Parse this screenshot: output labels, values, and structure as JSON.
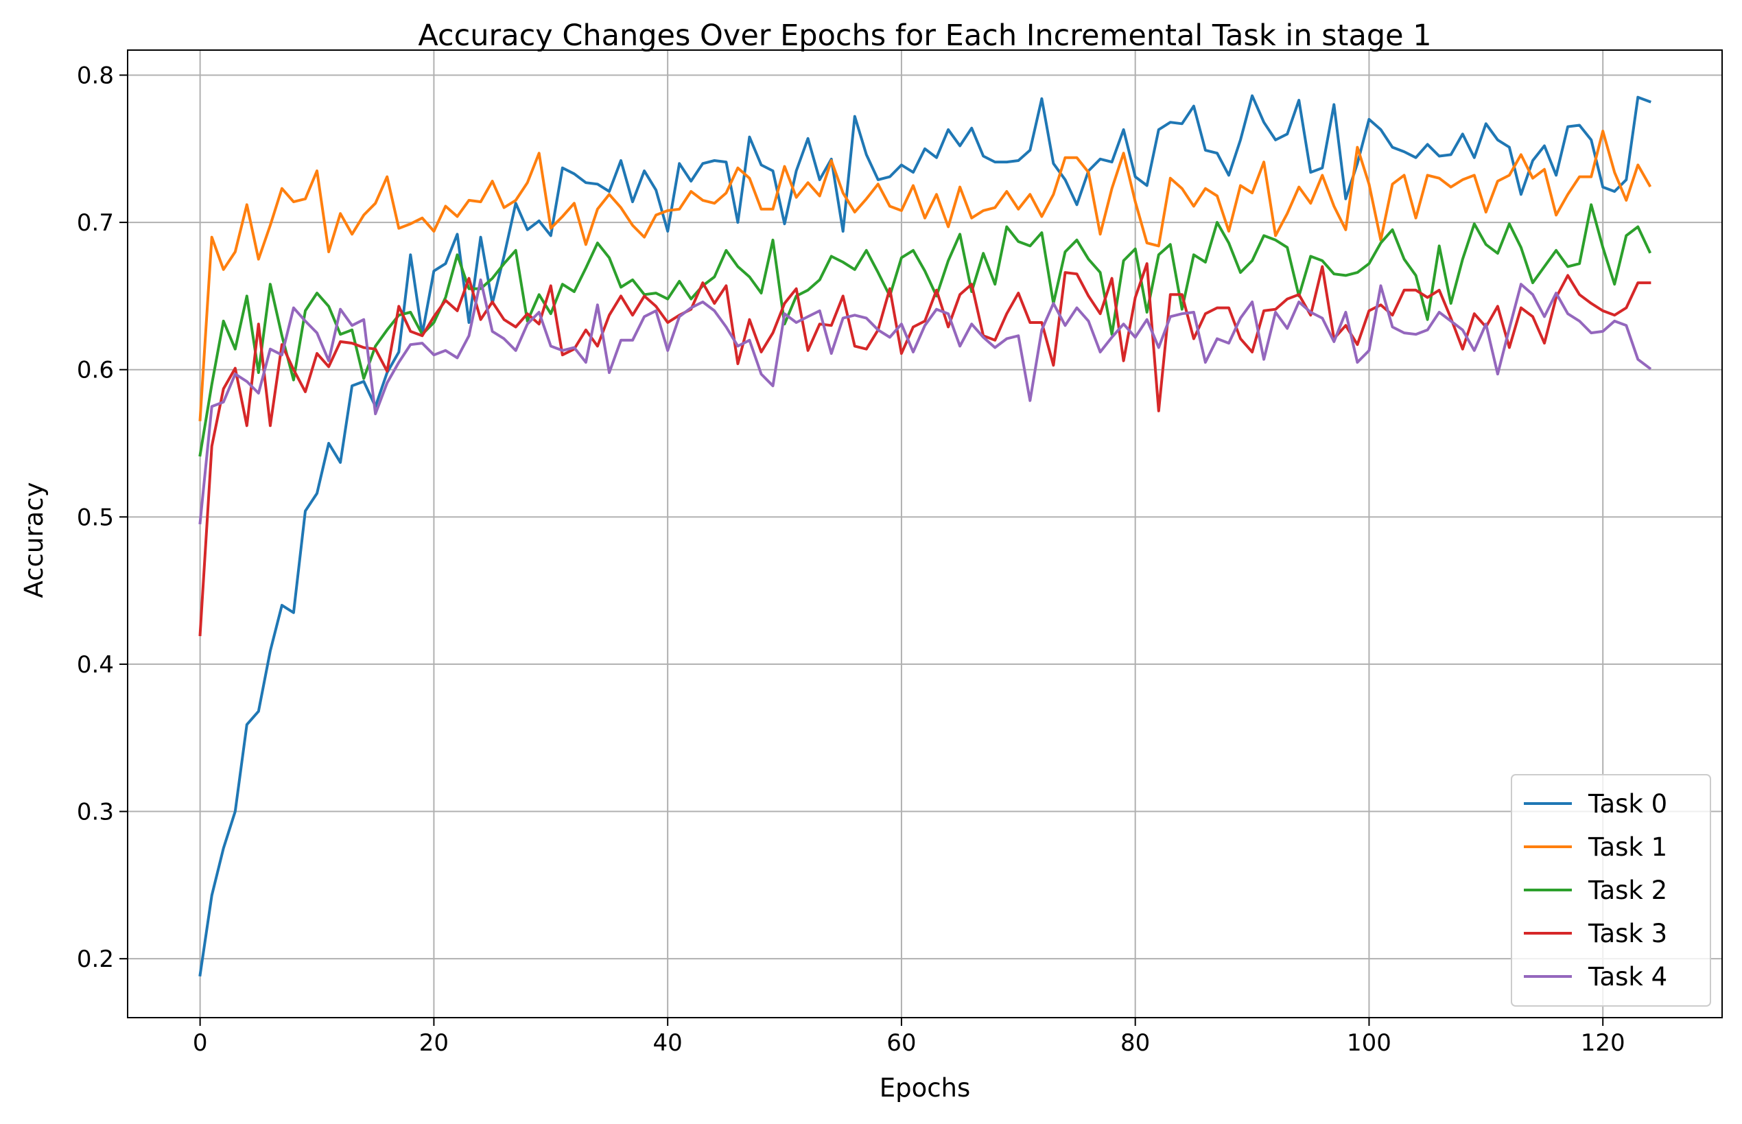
{
  "chart_data": {
    "type": "line",
    "title": "Accuracy Changes Over Epochs for Each Incremental Task in stage 1",
    "xlabel": "Epochs",
    "ylabel": "Accuracy",
    "xlim": [
      -6.2,
      130.2
    ],
    "ylim": [
      0.16,
      0.817
    ],
    "x_ticks": [
      0,
      20,
      40,
      60,
      80,
      100,
      120
    ],
    "y_ticks": [
      0.2,
      0.3,
      0.4,
      0.5,
      0.6,
      0.7,
      0.8
    ],
    "x_tick_labels": [
      "0",
      "20",
      "40",
      "60",
      "80",
      "100",
      "120"
    ],
    "y_tick_labels": [
      "0.2",
      "0.3",
      "0.4",
      "0.5",
      "0.6",
      "0.7",
      "0.8"
    ],
    "grid": true,
    "legend_position": "lower-right",
    "x": [
      0,
      1,
      2,
      3,
      4,
      5,
      6,
      7,
      8,
      9,
      10,
      11,
      12,
      13,
      14,
      15,
      16,
      17,
      18,
      19,
      20,
      21,
      22,
      23,
      24,
      25,
      26,
      27,
      28,
      29,
      30,
      31,
      32,
      33,
      34,
      35,
      36,
      37,
      38,
      39,
      40,
      41,
      42,
      43,
      44,
      45,
      46,
      47,
      48,
      49,
      50,
      51,
      52,
      53,
      54,
      55,
      56,
      57,
      58,
      59,
      60,
      61,
      62,
      63,
      64,
      65,
      66,
      67,
      68,
      69,
      70,
      71,
      72,
      73,
      74,
      75,
      76,
      77,
      78,
      79,
      80,
      81,
      82,
      83,
      84,
      85,
      86,
      87,
      88,
      89,
      90,
      91,
      92,
      93,
      94,
      95,
      96,
      97,
      98,
      99,
      100,
      101,
      102,
      103,
      104,
      105,
      106,
      107,
      108,
      109,
      110,
      111,
      112,
      113,
      114,
      115,
      116,
      117,
      118,
      119,
      120,
      121,
      122,
      123,
      124
    ],
    "series": [
      {
        "name": "Task 0",
        "color": "#1f77b4",
        "values": [
          0.189,
          0.243,
          0.275,
          0.3,
          0.359,
          0.368,
          0.409,
          0.44,
          0.435,
          0.504,
          0.516,
          0.55,
          0.537,
          0.589,
          0.592,
          0.575,
          0.598,
          0.612,
          0.678,
          0.624,
          0.667,
          0.672,
          0.692,
          0.632,
          0.69,
          0.645,
          0.677,
          0.713,
          0.695,
          0.701,
          0.691,
          0.737,
          0.733,
          0.727,
          0.726,
          0.721,
          0.742,
          0.714,
          0.735,
          0.722,
          0.694,
          0.74,
          0.728,
          0.74,
          0.742,
          0.741,
          0.7,
          0.758,
          0.739,
          0.735,
          0.699,
          0.735,
          0.757,
          0.729,
          0.743,
          0.694,
          0.772,
          0.746,
          0.729,
          0.731,
          0.739,
          0.734,
          0.75,
          0.744,
          0.763,
          0.752,
          0.764,
          0.745,
          0.741,
          0.741,
          0.742,
          0.749,
          0.784,
          0.74,
          0.729,
          0.712,
          0.735,
          0.743,
          0.741,
          0.763,
          0.731,
          0.725,
          0.763,
          0.768,
          0.767,
          0.779,
          0.749,
          0.747,
          0.732,
          0.756,
          0.786,
          0.768,
          0.756,
          0.76,
          0.783,
          0.734,
          0.737,
          0.78,
          0.716,
          0.74,
          0.77,
          0.763,
          0.751,
          0.748,
          0.744,
          0.753,
          0.745,
          0.746,
          0.76,
          0.744,
          0.767,
          0.756,
          0.751,
          0.719,
          0.742,
          0.752,
          0.732,
          0.765,
          0.766,
          0.756,
          0.724,
          0.721,
          0.729,
          0.785,
          0.782
        ]
      },
      {
        "name": "Task 1",
        "color": "#ff7f0e",
        "values": [
          0.566,
          0.69,
          0.668,
          0.68,
          0.712,
          0.675,
          0.698,
          0.723,
          0.714,
          0.716,
          0.735,
          0.68,
          0.706,
          0.692,
          0.705,
          0.713,
          0.731,
          0.696,
          0.699,
          0.703,
          0.694,
          0.711,
          0.704,
          0.715,
          0.714,
          0.728,
          0.71,
          0.715,
          0.727,
          0.747,
          0.696,
          0.704,
          0.713,
          0.685,
          0.709,
          0.719,
          0.71,
          0.698,
          0.69,
          0.705,
          0.708,
          0.709,
          0.721,
          0.715,
          0.713,
          0.72,
          0.737,
          0.73,
          0.709,
          0.709,
          0.738,
          0.717,
          0.727,
          0.718,
          0.742,
          0.72,
          0.707,
          0.716,
          0.726,
          0.711,
          0.708,
          0.725,
          0.703,
          0.719,
          0.697,
          0.724,
          0.703,
          0.708,
          0.71,
          0.721,
          0.709,
          0.719,
          0.704,
          0.719,
          0.744,
          0.744,
          0.734,
          0.692,
          0.723,
          0.747,
          0.714,
          0.686,
          0.684,
          0.73,
          0.723,
          0.711,
          0.723,
          0.718,
          0.694,
          0.725,
          0.72,
          0.741,
          0.691,
          0.706,
          0.724,
          0.713,
          0.732,
          0.711,
          0.695,
          0.751,
          0.726,
          0.688,
          0.726,
          0.732,
          0.703,
          0.732,
          0.73,
          0.724,
          0.729,
          0.732,
          0.707,
          0.728,
          0.732,
          0.746,
          0.73,
          0.736,
          0.705,
          0.719,
          0.731,
          0.731,
          0.762,
          0.734,
          0.715,
          0.739,
          0.725
        ]
      },
      {
        "name": "Task 2",
        "color": "#2ca02c",
        "values": [
          0.542,
          0.59,
          0.633,
          0.614,
          0.65,
          0.598,
          0.658,
          0.623,
          0.593,
          0.64,
          0.652,
          0.643,
          0.624,
          0.627,
          0.594,
          0.616,
          0.627,
          0.637,
          0.639,
          0.624,
          0.632,
          0.649,
          0.678,
          0.655,
          0.655,
          0.662,
          0.672,
          0.681,
          0.633,
          0.651,
          0.638,
          0.658,
          0.653,
          0.669,
          0.686,
          0.676,
          0.656,
          0.661,
          0.651,
          0.652,
          0.648,
          0.66,
          0.648,
          0.657,
          0.663,
          0.681,
          0.67,
          0.663,
          0.652,
          0.688,
          0.631,
          0.65,
          0.654,
          0.661,
          0.677,
          0.673,
          0.668,
          0.681,
          0.666,
          0.65,
          0.676,
          0.681,
          0.667,
          0.65,
          0.674,
          0.692,
          0.653,
          0.679,
          0.658,
          0.697,
          0.687,
          0.684,
          0.693,
          0.645,
          0.68,
          0.688,
          0.675,
          0.666,
          0.624,
          0.674,
          0.682,
          0.639,
          0.678,
          0.685,
          0.641,
          0.678,
          0.673,
          0.7,
          0.686,
          0.666,
          0.674,
          0.691,
          0.688,
          0.683,
          0.65,
          0.677,
          0.674,
          0.665,
          0.664,
          0.666,
          0.672,
          0.686,
          0.695,
          0.675,
          0.664,
          0.634,
          0.684,
          0.645,
          0.675,
          0.699,
          0.685,
          0.679,
          0.699,
          0.683,
          0.659,
          0.67,
          0.681,
          0.67,
          0.672,
          0.712,
          0.683,
          0.658,
          0.691,
          0.697,
          0.68
        ]
      },
      {
        "name": "Task 3",
        "color": "#d62728",
        "values": [
          0.42,
          0.548,
          0.587,
          0.601,
          0.562,
          0.631,
          0.562,
          0.617,
          0.6,
          0.585,
          0.611,
          0.602,
          0.619,
          0.618,
          0.615,
          0.614,
          0.599,
          0.643,
          0.626,
          0.623,
          0.636,
          0.647,
          0.64,
          0.662,
          0.634,
          0.646,
          0.634,
          0.629,
          0.638,
          0.631,
          0.657,
          0.61,
          0.614,
          0.627,
          0.616,
          0.637,
          0.65,
          0.637,
          0.65,
          0.643,
          0.632,
          0.637,
          0.641,
          0.659,
          0.645,
          0.657,
          0.604,
          0.634,
          0.612,
          0.625,
          0.645,
          0.655,
          0.613,
          0.631,
          0.63,
          0.65,
          0.616,
          0.614,
          0.627,
          0.655,
          0.611,
          0.629,
          0.633,
          0.654,
          0.629,
          0.651,
          0.658,
          0.623,
          0.62,
          0.638,
          0.652,
          0.632,
          0.632,
          0.603,
          0.666,
          0.665,
          0.65,
          0.638,
          0.662,
          0.606,
          0.649,
          0.672,
          0.572,
          0.651,
          0.651,
          0.621,
          0.638,
          0.642,
          0.642,
          0.621,
          0.612,
          0.64,
          0.641,
          0.648,
          0.651,
          0.637,
          0.67,
          0.621,
          0.63,
          0.617,
          0.64,
          0.644,
          0.637,
          0.654,
          0.654,
          0.649,
          0.654,
          0.635,
          0.614,
          0.638,
          0.629,
          0.643,
          0.615,
          0.642,
          0.636,
          0.618,
          0.649,
          0.664,
          0.651,
          0.645,
          0.64,
          0.637,
          0.642,
          0.659,
          0.659
        ]
      },
      {
        "name": "Task 4",
        "color": "#9467bd",
        "values": [
          0.496,
          0.575,
          0.578,
          0.597,
          0.592,
          0.584,
          0.614,
          0.61,
          0.642,
          0.633,
          0.625,
          0.606,
          0.641,
          0.63,
          0.634,
          0.57,
          0.591,
          0.605,
          0.617,
          0.618,
          0.61,
          0.613,
          0.608,
          0.623,
          0.661,
          0.626,
          0.621,
          0.613,
          0.631,
          0.639,
          0.616,
          0.613,
          0.615,
          0.605,
          0.644,
          0.598,
          0.62,
          0.62,
          0.636,
          0.64,
          0.613,
          0.636,
          0.642,
          0.646,
          0.64,
          0.629,
          0.616,
          0.62,
          0.597,
          0.589,
          0.638,
          0.632,
          0.636,
          0.64,
          0.611,
          0.635,
          0.637,
          0.635,
          0.627,
          0.622,
          0.631,
          0.612,
          0.63,
          0.641,
          0.638,
          0.616,
          0.631,
          0.622,
          0.615,
          0.621,
          0.623,
          0.579,
          0.627,
          0.645,
          0.63,
          0.642,
          0.633,
          0.612,
          0.622,
          0.631,
          0.622,
          0.634,
          0.615,
          0.636,
          0.638,
          0.639,
          0.605,
          0.621,
          0.618,
          0.635,
          0.646,
          0.607,
          0.639,
          0.628,
          0.646,
          0.639,
          0.635,
          0.619,
          0.639,
          0.605,
          0.613,
          0.657,
          0.629,
          0.625,
          0.624,
          0.627,
          0.639,
          0.633,
          0.627,
          0.613,
          0.631,
          0.597,
          0.628,
          0.658,
          0.651,
          0.636,
          0.652,
          0.638,
          0.633,
          0.625,
          0.626,
          0.633,
          0.63,
          0.607,
          0.601
        ]
      }
    ]
  }
}
